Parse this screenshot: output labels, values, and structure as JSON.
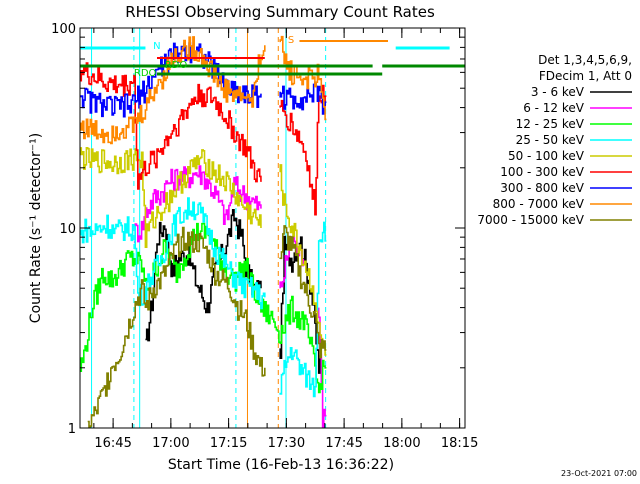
{
  "chart_data": {
    "type": "line",
    "title": "RHESSI Observing Summary Count Rates",
    "xlabel": "Start Time (16-Feb-13 16:36:22)",
    "ylabel": "Count Rate (s⁻¹ detector⁻¹)",
    "y_scale": "log",
    "ylim": [
      1,
      100
    ],
    "xlim_minutes": [
      0,
      100
    ],
    "x_ticks": [
      "16:45",
      "17:00",
      "17:15",
      "17:30",
      "17:45",
      "18:00",
      "18:15"
    ],
    "y_ticks": [
      "1",
      "10",
      "100"
    ],
    "legend": {
      "placement": "right",
      "header": [
        "Det 1,3,4,5,6,9,",
        "FDecim 1, Att 0"
      ]
    },
    "series": [
      {
        "name": "3 - 6 keV",
        "color": "#000000",
        "x": [
          17,
          19,
          20,
          22,
          24,
          25,
          28,
          30,
          33,
          35,
          38,
          40,
          42,
          43,
          45,
          47,
          52,
          53,
          55,
          57,
          60,
          62
        ],
        "y": [
          2.5,
          4.8,
          9,
          10.5,
          6,
          7,
          7.5,
          5.5,
          4,
          6,
          8.5,
          11.5,
          9,
          6.5,
          5,
          5,
          2.5,
          8,
          7,
          9,
          5,
          2
        ]
      },
      {
        "name": "6 - 12 keV",
        "color": "#ff00ff",
        "x": [
          14,
          16,
          17,
          19,
          21,
          23,
          25,
          28,
          30,
          32,
          33,
          35,
          38,
          40,
          42,
          44,
          47,
          52,
          53,
          55,
          56,
          58,
          62,
          63
        ],
        "y": [
          9.5,
          10,
          12,
          14,
          15,
          17,
          18,
          18,
          19,
          18.5,
          17,
          15,
          11,
          16.5,
          15,
          14,
          12.5,
          5,
          6,
          9.5,
          8,
          7,
          4,
          1.1
        ]
      },
      {
        "name": "12 - 25 keV",
        "color": "#00ff00",
        "x": [
          0,
          1,
          3,
          6,
          8,
          10,
          12,
          14,
          16,
          17,
          19,
          22,
          25,
          28,
          30,
          33,
          35,
          38,
          40,
          43,
          45,
          47,
          50,
          52,
          53,
          55,
          57,
          58,
          60,
          62,
          63
        ],
        "y": [
          2,
          2.3,
          4,
          6,
          5.5,
          6,
          7,
          7,
          6.5,
          5,
          6,
          8,
          6,
          8,
          9.5,
          9.5,
          8,
          6,
          5.5,
          6.5,
          5,
          4,
          3.5,
          3,
          3.3,
          4,
          3.5,
          3.5,
          2.5,
          1.5,
          2
        ]
      },
      {
        "name": "25 - 50 keV",
        "color": "#00ffff",
        "x": [
          0,
          1,
          3,
          5,
          7,
          9,
          11,
          13,
          14,
          15,
          17,
          19,
          21,
          23,
          25,
          27,
          29,
          31,
          33,
          35,
          37,
          39,
          41,
          43,
          45,
          47,
          48,
          52,
          53,
          55,
          57,
          59,
          61,
          62,
          63
        ],
        "y": [
          9,
          10,
          9.5,
          10,
          10.5,
          9.5,
          10,
          10,
          10,
          4.5,
          5,
          6,
          7,
          9,
          11,
          12,
          13,
          12,
          10,
          8,
          7,
          6,
          5.5,
          5,
          5,
          4.5,
          4.5,
          1.5,
          2,
          2.5,
          2,
          1.8,
          1.6,
          9,
          10
        ]
      },
      {
        "name": "50 - 100 keV",
        "color": "#cccc00",
        "x": [
          0,
          2,
          4,
          6,
          8,
          10,
          12,
          14,
          16,
          17,
          19,
          21,
          23,
          25,
          27,
          29,
          31,
          33,
          35,
          38,
          40,
          42,
          44,
          46,
          47,
          52,
          53,
          55,
          57,
          59,
          61,
          62,
          63
        ],
        "y": [
          23,
          22,
          21.5,
          22,
          21,
          21.5,
          22,
          22.5,
          22,
          9,
          11,
          12.5,
          14,
          16,
          18,
          20,
          22,
          21,
          19,
          17,
          15,
          13,
          12,
          11,
          10,
          19,
          13,
          10,
          8,
          6,
          4.5,
          3,
          2.5
        ]
      },
      {
        "name": "100 - 300 keV",
        "color": "#ff0000",
        "x": [
          0,
          1,
          3,
          5,
          7,
          9,
          11,
          13,
          14,
          15,
          17,
          19,
          21,
          23,
          25,
          27,
          29,
          31,
          33,
          35,
          37,
          39,
          41,
          43,
          45,
          46,
          47,
          52,
          53,
          55,
          57,
          59,
          60,
          61,
          62,
          63
        ],
        "y": [
          62,
          60,
          58,
          55,
          53,
          52,
          52,
          53,
          55,
          17,
          20,
          22,
          25,
          29,
          33,
          37,
          43,
          47,
          46,
          43,
          38,
          33,
          28,
          25,
          20,
          18,
          17,
          40,
          38,
          33,
          28,
          22,
          15,
          13,
          48,
          47
        ]
      },
      {
        "name": "300 - 800 keV",
        "color": "#0000ff",
        "x": [
          0,
          1,
          3,
          5,
          7,
          9,
          11,
          13,
          14,
          15,
          17,
          19,
          21,
          23,
          25,
          27,
          29,
          31,
          33,
          35,
          37,
          40,
          43,
          45,
          47,
          52,
          53,
          55,
          57,
          59,
          61,
          62,
          63
        ],
        "y": [
          48,
          45,
          43,
          42,
          41,
          40,
          41,
          41,
          43,
          45,
          50,
          57,
          64,
          70,
          76,
          78,
          78,
          76,
          68,
          62,
          54,
          49,
          47,
          46,
          47,
          48,
          45,
          44,
          45,
          46,
          47,
          48,
          42
        ]
      },
      {
        "name": "800 - 7000 keV",
        "color": "#ff8800",
        "x": [
          0,
          1,
          3,
          5,
          7,
          9,
          11,
          13,
          14,
          15,
          17,
          19,
          21,
          23,
          25,
          27,
          29,
          31,
          33,
          35,
          37,
          40,
          43,
          45,
          47,
          48,
          52,
          53,
          55,
          57,
          59,
          60,
          61,
          62,
          63
        ],
        "y": [
          33,
          32,
          31,
          30.5,
          30,
          31,
          32,
          32,
          33,
          35,
          40,
          48,
          56,
          66,
          74,
          79,
          80,
          76,
          66,
          58,
          50,
          47,
          45,
          44,
          80,
          82,
          85,
          70,
          60,
          57,
          56,
          56,
          57,
          58,
          40
        ]
      },
      {
        "name": "7000 - 15000 keV",
        "color": "#808000",
        "x": [
          2,
          4,
          6,
          8,
          10,
          12,
          14,
          16,
          17,
          19,
          21,
          23,
          25,
          27,
          29,
          31,
          33,
          35,
          37,
          39,
          41,
          43,
          45,
          47,
          48,
          52,
          53,
          55,
          57,
          59,
          61,
          62,
          63
        ],
        "y": [
          1,
          1.2,
          1.5,
          2,
          2.3,
          3,
          4,
          5,
          4,
          5,
          5.5,
          6.5,
          8,
          9,
          8.5,
          8.5,
          7.5,
          6,
          5.5,
          5,
          4,
          3.5,
          2.5,
          2,
          2,
          7,
          9.5,
          8,
          6,
          4.5,
          3.5,
          2.5,
          2.5
        ]
      }
    ],
    "annotations": [
      {
        "text": "N",
        "color": "#00ffff"
      },
      {
        "text": "RDO",
        "color": "#00cc00"
      },
      {
        "text": "RDO",
        "color": "#00cc00"
      },
      {
        "text": "S",
        "color": "#ff8800"
      }
    ],
    "footer_date": "23-Oct-2021 07:00"
  }
}
